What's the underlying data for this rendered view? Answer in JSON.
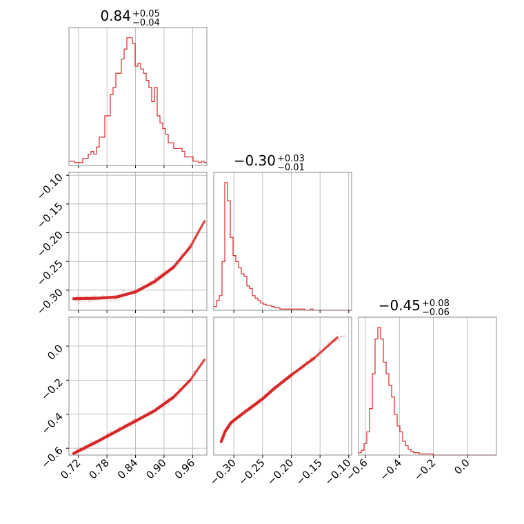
{
  "colors": {
    "accent": "#d62728",
    "grid": "#b0b0b0",
    "frame": "#888888"
  },
  "chart_data": [
    {
      "type": "histogram",
      "panel": "diag-0",
      "title": {
        "main": "0.84",
        "sup": "+0.05",
        "sub": "−0.04"
      },
      "xlim": [
        0.7,
        0.99
      ],
      "xticks": [
        0.72,
        0.78,
        0.84,
        0.9,
        0.96
      ],
      "bin_edges_start": 0.7,
      "bin_width": 0.0058,
      "counts": [
        3,
        3,
        2,
        2,
        2,
        5,
        5,
        8,
        10,
        8,
        13,
        20,
        20,
        35,
        35,
        50,
        55,
        65,
        65,
        75,
        82,
        90,
        90,
        86,
        70,
        72,
        68,
        65,
        60,
        55,
        45,
        55,
        35,
        30,
        26,
        22,
        16,
        16,
        12,
        12,
        12,
        10,
        6,
        6,
        6,
        3,
        3,
        2,
        3,
        2
      ],
      "grid": true
    },
    {
      "type": "scatter+contour",
      "panel": "pair-1-0",
      "xlim": [
        0.7,
        0.99
      ],
      "ylim": [
        -0.335,
        -0.095
      ],
      "xticks": [
        0.72,
        0.78,
        0.84,
        0.9,
        0.96
      ],
      "yticks": [
        -0.1,
        -0.15,
        -0.2,
        -0.25,
        -0.3
      ],
      "ytick_labels": [
        "−0.10",
        "−0.15",
        "−0.20",
        "−0.25",
        "−0.30"
      ],
      "curve_x": [
        0.71,
        0.76,
        0.8,
        0.84,
        0.88,
        0.92,
        0.955,
        0.985
      ],
      "curve_y": [
        -0.315,
        -0.314,
        -0.312,
        -0.303,
        -0.285,
        -0.26,
        -0.225,
        -0.18
      ],
      "grid": true
    },
    {
      "type": "histogram",
      "panel": "diag-1",
      "title": {
        "main": "−0.30",
        "sup": "+0.03",
        "sub": "−0.01"
      },
      "xlim": [
        -0.335,
        -0.095
      ],
      "xticks": [
        -0.3,
        -0.25,
        -0.2,
        -0.15,
        -0.1
      ],
      "bin_edges_start": -0.335,
      "bin_width": 0.0048,
      "counts": [
        3,
        8,
        12,
        40,
        105,
        90,
        60,
        45,
        40,
        35,
        30,
        28,
        20,
        18,
        12,
        10,
        8,
        6,
        5,
        4,
        4,
        3,
        2,
        2,
        1,
        1,
        1,
        1,
        1,
        1,
        1,
        1,
        1,
        0,
        0,
        1,
        0,
        0,
        0,
        0,
        0,
        0,
        0,
        0,
        0,
        0,
        0,
        0,
        0,
        0
      ],
      "grid": true
    },
    {
      "type": "scatter+contour",
      "panel": "pair-2-0",
      "xlim": [
        0.7,
        0.99
      ],
      "ylim": [
        -0.64,
        0.17
      ],
      "xticks": [
        0.72,
        0.78,
        0.84,
        0.9,
        0.96
      ],
      "xtick_labels": [
        "0.72",
        "0.78",
        "0.84",
        "0.90",
        "0.96"
      ],
      "yticks": [
        0.0,
        -0.2,
        -0.4,
        -0.6
      ],
      "ytick_labels": [
        "0.0",
        "−0.2",
        "−0.4",
        "−0.6"
      ],
      "curve_x": [
        0.71,
        0.76,
        0.8,
        0.84,
        0.88,
        0.92,
        0.955,
        0.985
      ],
      "curve_y": [
        -0.63,
        -0.56,
        -0.5,
        -0.44,
        -0.38,
        -0.3,
        -0.2,
        -0.08
      ],
      "grid": true
    },
    {
      "type": "scatter+contour",
      "panel": "pair-2-1",
      "xlim": [
        -0.335,
        -0.095
      ],
      "ylim": [
        -0.64,
        0.17
      ],
      "xticks": [
        -0.3,
        -0.25,
        -0.2,
        -0.15,
        -0.1
      ],
      "xtick_labels": [
        "−0.30",
        "−0.25",
        "−0.20",
        "−0.15",
        "−0.10"
      ],
      "curve_x": [
        -0.322,
        -0.315,
        -0.305,
        -0.29,
        -0.27,
        -0.25,
        -0.23,
        -0.2,
        -0.16,
        -0.12
      ],
      "curve_y": [
        -0.56,
        -0.5,
        -0.45,
        -0.41,
        -0.36,
        -0.31,
        -0.25,
        -0.17,
        -0.07,
        0.05
      ],
      "grid": true
    },
    {
      "type": "histogram",
      "panel": "diag-2",
      "title": {
        "main": "−0.45",
        "sup": "+0.08",
        "sub": "−0.06"
      },
      "xlim": [
        -0.64,
        0.17
      ],
      "xticks": [
        -0.6,
        -0.4,
        -0.2,
        0.0
      ],
      "xtick_labels": [
        "−0.6",
        "−0.4",
        "−0.2",
        "0.0"
      ],
      "bin_edges_start": -0.64,
      "bin_width": 0.0162,
      "counts": [
        2,
        4,
        10,
        20,
        40,
        70,
        100,
        110,
        100,
        80,
        70,
        60,
        50,
        35,
        25,
        20,
        12,
        8,
        5,
        3,
        2,
        2,
        1,
        1,
        1,
        1,
        1,
        0,
        0,
        0,
        0,
        0,
        0,
        0,
        0,
        0,
        0,
        0,
        0,
        0,
        0,
        0,
        0,
        0,
        0,
        0,
        0,
        0,
        0,
        0
      ],
      "grid": true
    }
  ]
}
